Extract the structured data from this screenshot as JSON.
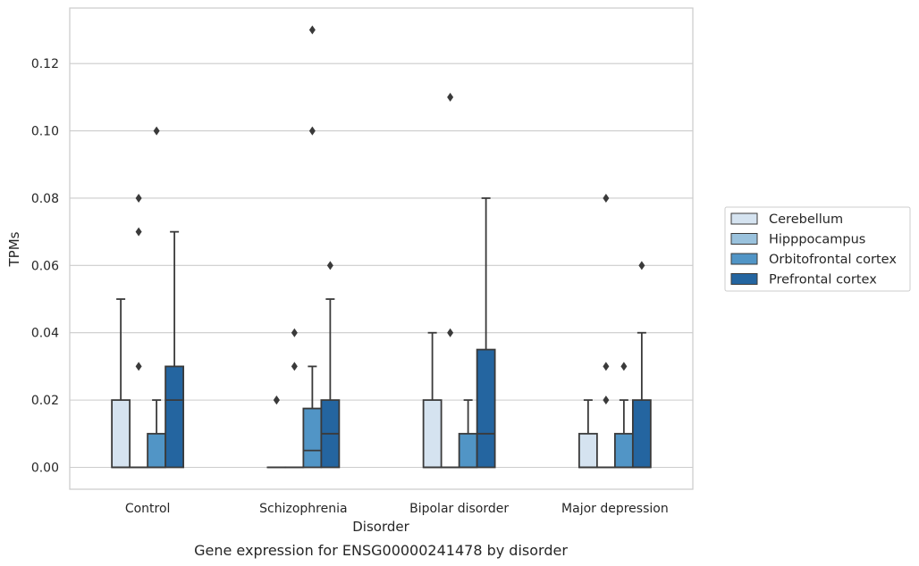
{
  "chart_data": {
    "type": "box",
    "title": "Gene expression for ENSG00000241478 by disorder",
    "xlabel": "Disorder",
    "ylabel": "TPMs",
    "ylim": [
      -0.0065,
      0.1365
    ],
    "yticks": [
      "0.00",
      "0.02",
      "0.04",
      "0.06",
      "0.08",
      "0.10",
      "0.12"
    ],
    "grid": "horizontal",
    "legend_position": "right",
    "categories": [
      "Control",
      "Schizophrenia",
      "Bipolar disorder",
      "Major depression"
    ],
    "series": [
      {
        "name": "Cerebellum",
        "color": "#d5e3f0",
        "boxes": [
          {
            "q1": 0.0,
            "median": 0.0,
            "q3": 0.02,
            "whisker_low": 0.0,
            "whisker_high": 0.05,
            "outliers": []
          },
          {
            "q1": 0.0,
            "median": 0.0,
            "q3": 0.0,
            "whisker_low": 0.0,
            "whisker_high": 0.0,
            "outliers": [
              0.02,
              0.02
            ]
          },
          {
            "q1": 0.0,
            "median": 0.0,
            "q3": 0.02,
            "whisker_low": 0.0,
            "whisker_high": 0.04,
            "outliers": []
          },
          {
            "q1": 0.0,
            "median": 0.0,
            "q3": 0.01,
            "whisker_low": 0.0,
            "whisker_high": 0.02,
            "outliers": []
          }
        ]
      },
      {
        "name": "Hipppocampus",
        "color": "#9ac2dd",
        "boxes": [
          {
            "q1": 0.0,
            "median": 0.0,
            "q3": 0.0,
            "whisker_low": 0.0,
            "whisker_high": 0.0,
            "outliers": [
              0.03,
              0.07,
              0.08
            ]
          },
          {
            "q1": 0.0,
            "median": 0.0,
            "q3": 0.0,
            "whisker_low": 0.0,
            "whisker_high": 0.0,
            "outliers": [
              0.03,
              0.04
            ]
          },
          {
            "q1": 0.0,
            "median": 0.0,
            "q3": 0.0,
            "whisker_low": 0.0,
            "whisker_high": 0.0,
            "outliers": [
              0.04,
              0.11
            ]
          },
          {
            "q1": 0.0,
            "median": 0.0,
            "q3": 0.0,
            "whisker_low": 0.0,
            "whisker_high": 0.0,
            "outliers": [
              0.02,
              0.03,
              0.08
            ]
          }
        ]
      },
      {
        "name": "Orbitofrontal cortex",
        "color": "#5195c6",
        "boxes": [
          {
            "q1": 0.0,
            "median": 0.0,
            "q3": 0.01,
            "whisker_low": 0.0,
            "whisker_high": 0.02,
            "outliers": [
              0.1
            ]
          },
          {
            "q1": 0.0,
            "median": 0.005,
            "q3": 0.0175,
            "whisker_low": 0.0,
            "whisker_high": 0.03,
            "outliers": [
              0.1,
              0.13
            ]
          },
          {
            "q1": 0.0,
            "median": 0.0,
            "q3": 0.01,
            "whisker_low": 0.0,
            "whisker_high": 0.02,
            "outliers": []
          },
          {
            "q1": 0.0,
            "median": 0.0,
            "q3": 0.01,
            "whisker_low": 0.0,
            "whisker_high": 0.02,
            "outliers": [
              0.03
            ]
          }
        ]
      },
      {
        "name": "Prefrontal cortex",
        "color": "#2465a0",
        "boxes": [
          {
            "q1": 0.0,
            "median": 0.02,
            "q3": 0.03,
            "whisker_low": 0.0,
            "whisker_high": 0.07,
            "outliers": []
          },
          {
            "q1": 0.0,
            "median": 0.01,
            "q3": 0.02,
            "whisker_low": 0.0,
            "whisker_high": 0.05,
            "outliers": [
              0.06
            ]
          },
          {
            "q1": 0.0,
            "median": 0.01,
            "q3": 0.035,
            "whisker_low": 0.0,
            "whisker_high": 0.08,
            "outliers": []
          },
          {
            "q1": 0.0,
            "median": 0.0,
            "q3": 0.02,
            "whisker_low": 0.0,
            "whisker_high": 0.04,
            "outliers": [
              0.06
            ]
          }
        ]
      }
    ]
  }
}
